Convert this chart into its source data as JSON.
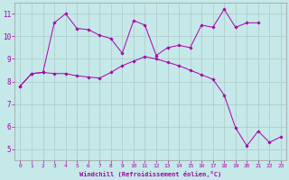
{
  "xlabel": "Windchill (Refroidissement éolien,°C)",
  "background_color": "#c5e8e8",
  "grid_color": "#b0c8c8",
  "line_color": "#aa00aa",
  "line1_x": [
    0,
    1,
    2,
    3,
    4,
    5,
    6,
    7,
    8,
    9,
    10,
    11,
    12,
    13,
    14,
    15,
    16,
    17,
    18,
    19,
    20,
    21
  ],
  "line1_y": [
    7.8,
    8.35,
    8.4,
    10.6,
    11.0,
    10.35,
    10.3,
    10.05,
    9.9,
    9.25,
    10.7,
    10.5,
    9.15,
    9.5,
    9.6,
    9.5,
    10.5,
    10.4,
    11.2,
    10.4,
    10.6,
    10.6
  ],
  "line2_x": [
    0,
    1,
    2,
    3,
    4,
    5,
    6,
    7,
    8,
    9,
    10,
    11,
    12,
    13,
    14,
    15,
    16,
    17,
    18,
    19,
    20,
    21,
    22,
    23
  ],
  "line2_y": [
    7.8,
    8.35,
    8.4,
    8.35,
    8.35,
    8.25,
    8.2,
    8.15,
    8.4,
    8.7,
    8.9,
    9.1,
    9.0,
    8.85,
    8.7,
    8.5,
    8.3,
    8.1,
    7.4,
    5.95,
    5.15,
    5.8,
    5.3,
    5.55
  ],
  "xlim": [
    -0.5,
    23.5
  ],
  "ylim": [
    4.5,
    11.5
  ],
  "yticks": [
    5,
    6,
    7,
    8,
    9,
    10,
    11
  ],
  "xticks": [
    0,
    1,
    2,
    3,
    4,
    5,
    6,
    7,
    8,
    9,
    10,
    11,
    12,
    13,
    14,
    15,
    16,
    17,
    18,
    19,
    20,
    21,
    22,
    23
  ],
  "figsize": [
    3.2,
    2.0
  ],
  "dpi": 100
}
